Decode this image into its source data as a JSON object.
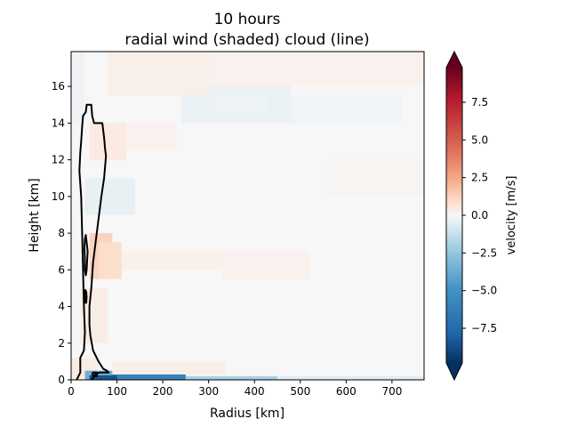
{
  "chart_data": {
    "type": "heatmap",
    "title": "10 hours",
    "subtitle": "radial wind (shaded) cloud (line)",
    "xlabel": "Radius [km]",
    "ylabel": "Height [km]",
    "xlim": [
      0,
      770
    ],
    "ylim": [
      0,
      17.9
    ],
    "x_ticks": [
      "0",
      "100",
      "200",
      "300",
      "400",
      "500",
      "600",
      "700"
    ],
    "y_ticks": [
      "0",
      "2",
      "4",
      "6",
      "8",
      "10",
      "12",
      "14",
      "16"
    ],
    "colorbar": {
      "label": "velocity [m/s]",
      "range": [
        -9.8,
        9.8
      ],
      "colormap": "RdBu_r",
      "extend": "both",
      "ticks": [
        "7.5",
        "5.0",
        "2.5",
        "0.0",
        "−2.5",
        "−5.0",
        "−7.5"
      ],
      "tick_values": [
        7.5,
        5.0,
        2.5,
        0.0,
        -2.5,
        -5.0,
        -7.5
      ]
    },
    "field_patches": [
      {
        "r": [
          0,
          60
        ],
        "z": [
          0,
          1.2
        ],
        "v": 0.4
      },
      {
        "r": [
          30,
          90
        ],
        "z": [
          0,
          0.5
        ],
        "v": -3.5
      },
      {
        "r": [
          90,
          250
        ],
        "z": [
          0,
          0.3
        ],
        "v": -6.0
      },
      {
        "r": [
          40,
          100
        ],
        "z": [
          0,
          0.25
        ],
        "v": -8.5
      },
      {
        "r": [
          250,
          450
        ],
        "z": [
          0,
          0.2
        ],
        "v": -2.0
      },
      {
        "r": [
          450,
          770
        ],
        "z": [
          0,
          0.2
        ],
        "v": -0.6
      },
      {
        "r": [
          90,
          340
        ],
        "z": [
          0.3,
          1.0
        ],
        "v": 0.3
      },
      {
        "r": [
          20,
          80
        ],
        "z": [
          2,
          5
        ],
        "v": 0.4
      },
      {
        "r": [
          40,
          90
        ],
        "z": [
          5.5,
          8
        ],
        "v": 1.2
      },
      {
        "r": [
          60,
          110
        ],
        "z": [
          5.5,
          7.5
        ],
        "v": 0.9
      },
      {
        "r": [
          110,
          330
        ],
        "z": [
          6,
          7
        ],
        "v": 0.25
      },
      {
        "r": [
          330,
          520
        ],
        "z": [
          5.5,
          7
        ],
        "v": 0.2
      },
      {
        "r": [
          30,
          140
        ],
        "z": [
          9,
          11
        ],
        "v": -0.4
      },
      {
        "r": [
          40,
          120
        ],
        "z": [
          12,
          14
        ],
        "v": 0.45
      },
      {
        "r": [
          120,
          230
        ],
        "z": [
          12.5,
          14
        ],
        "v": 0.2
      },
      {
        "r": [
          240,
          480
        ],
        "z": [
          14,
          16
        ],
        "v": -0.35
      },
      {
        "r": [
          300,
          430
        ],
        "z": [
          14.5,
          15.5
        ],
        "v": -0.3
      },
      {
        "r": [
          80,
          300
        ],
        "z": [
          15.5,
          17.9
        ],
        "v": 0.3
      },
      {
        "r": [
          300,
          770
        ],
        "z": [
          16,
          17.9
        ],
        "v": 0.2
      },
      {
        "r": [
          0,
          30
        ],
        "z": [
          14,
          17.9
        ],
        "v": -0.2
      },
      {
        "r": [
          560,
          770
        ],
        "z": [
          10,
          12
        ],
        "v": 0.1
      },
      {
        "r": [
          480,
          720
        ],
        "z": [
          14,
          15.5
        ],
        "v": -0.15
      }
    ],
    "cloud_contours": [
      [
        [
          12,
          0
        ],
        [
          20,
          0.4
        ],
        [
          20,
          1.2
        ],
        [
          28,
          1.6
        ],
        [
          30,
          2.6
        ],
        [
          28,
          4.0
        ],
        [
          26,
          6.0
        ],
        [
          24,
          8.0
        ],
        [
          22,
          10.0
        ],
        [
          18,
          11.4
        ],
        [
          20,
          12.4
        ],
        [
          22,
          13.0
        ],
        [
          24,
          13.8
        ],
        [
          26,
          14.4
        ],
        [
          32,
          14.6
        ],
        [
          34,
          15.0
        ],
        [
          44,
          15.0
        ],
        [
          46,
          14.4
        ],
        [
          50,
          14.0
        ],
        [
          68,
          14.0
        ],
        [
          72,
          13.2
        ],
        [
          74,
          12.6
        ],
        [
          76,
          12.2
        ],
        [
          72,
          11.0
        ],
        [
          66,
          10.0
        ],
        [
          60,
          8.8
        ],
        [
          54,
          7.6
        ],
        [
          48,
          6.4
        ],
        [
          44,
          5.0
        ],
        [
          40,
          4.0
        ],
        [
          40,
          3.0
        ],
        [
          42,
          2.4
        ],
        [
          48,
          1.6
        ],
        [
          60,
          1.0
        ],
        [
          70,
          0.6
        ],
        [
          78,
          0.5
        ],
        [
          82,
          0.4
        ],
        [
          62,
          0.4
        ],
        [
          52,
          0.3
        ],
        [
          48,
          0.1
        ],
        [
          44,
          0
        ]
      ],
      [
        [
          30,
          7.7
        ],
        [
          32,
          7.9
        ],
        [
          34,
          7.5
        ],
        [
          36,
          7.0
        ],
        [
          35,
          6.5
        ],
        [
          34,
          6.0
        ],
        [
          32,
          5.7
        ],
        [
          30,
          6.0
        ],
        [
          30,
          6.6
        ],
        [
          29,
          7.2
        ],
        [
          30,
          7.7
        ]
      ],
      [
        [
          30,
          4.6
        ],
        [
          31,
          4.9
        ],
        [
          33,
          4.8
        ],
        [
          34,
          4.5
        ],
        [
          33,
          4.2
        ],
        [
          31,
          4.2
        ],
        [
          30,
          4.6
        ]
      ],
      [
        [
          46,
          0.4
        ],
        [
          56,
          0.4
        ],
        [
          56,
          0.2
        ],
        [
          48,
          0.2
        ],
        [
          46,
          0.4
        ]
      ]
    ]
  }
}
